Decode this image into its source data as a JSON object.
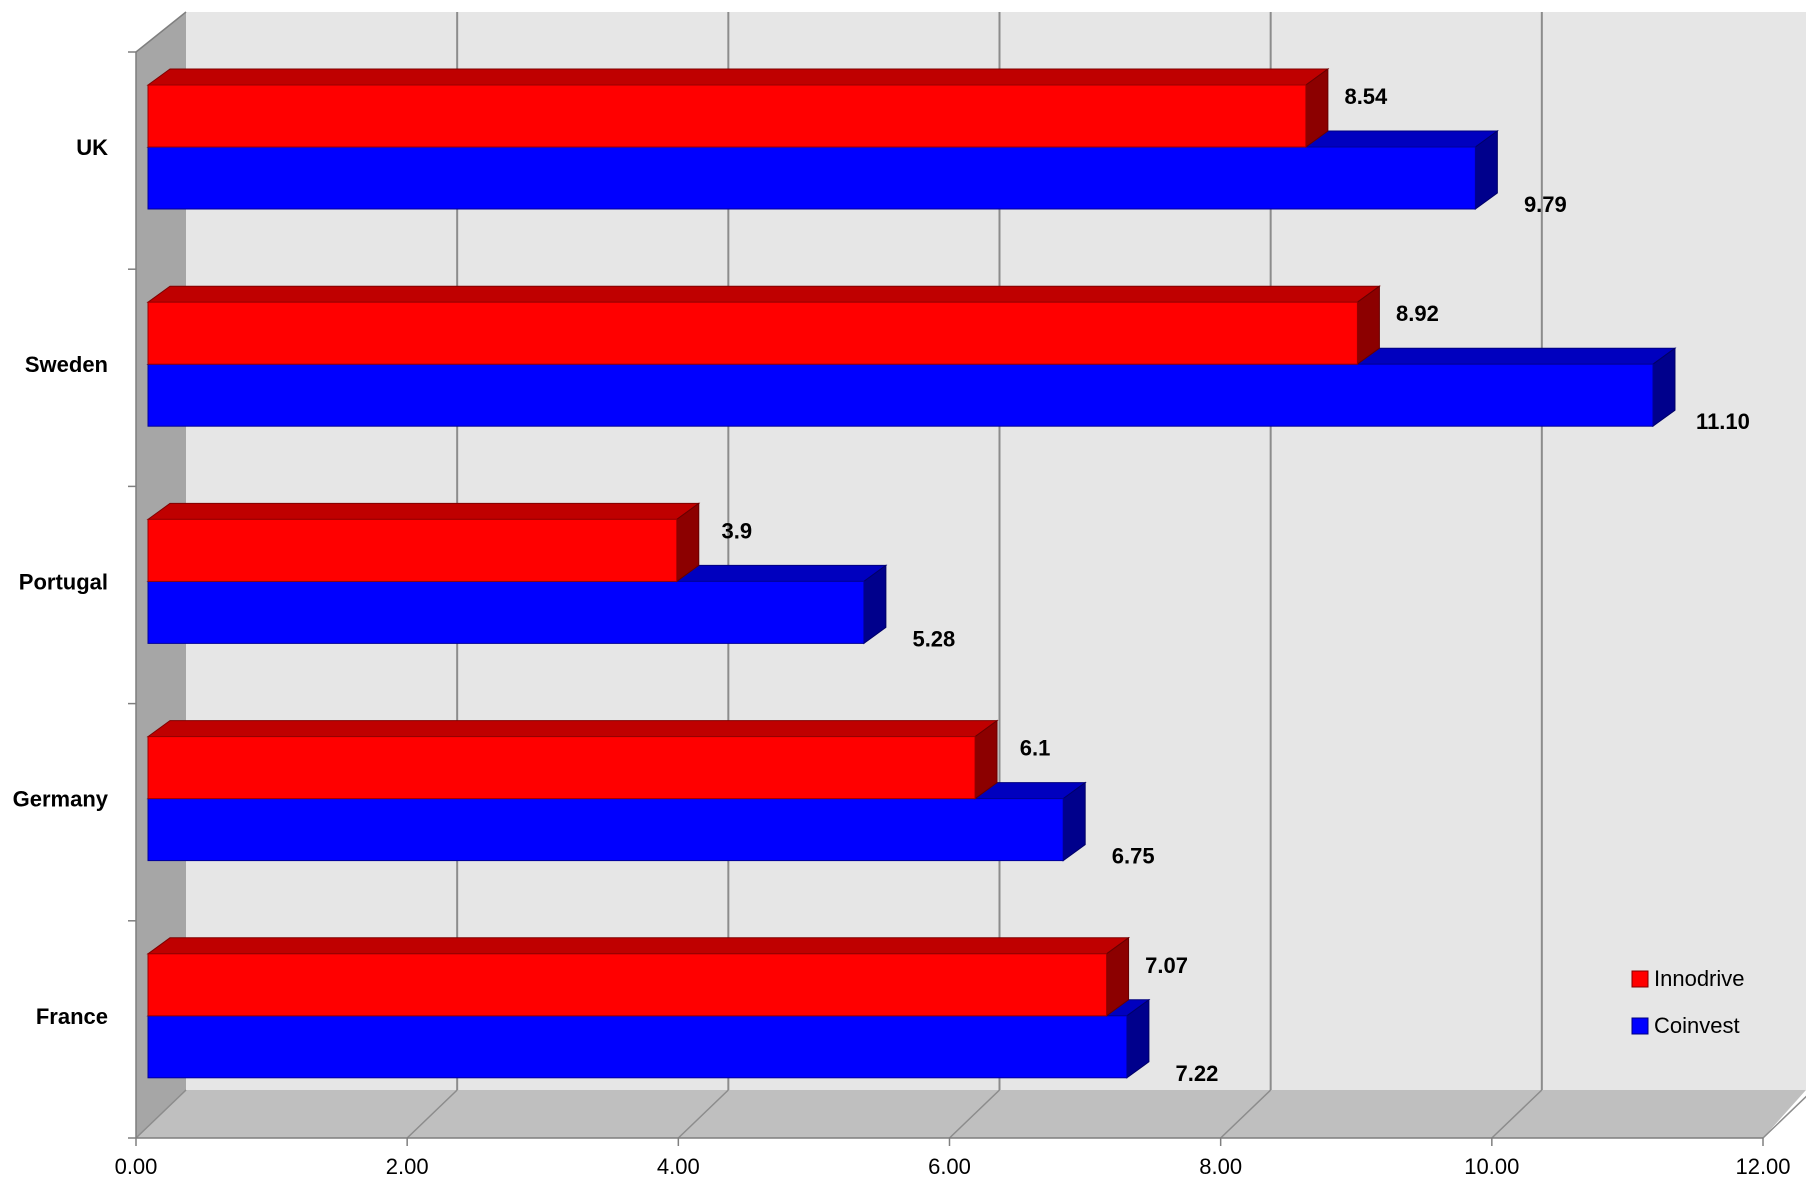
{
  "chart_data": {
    "type": "bar",
    "orientation": "horizontal",
    "style": "3d-clustered",
    "categories": [
      "UK",
      "Sweden",
      "Portugal",
      "Germany",
      "France"
    ],
    "series": [
      {
        "name": "Innodrive",
        "color": "#ff0000",
        "values": [
          8.54,
          8.92,
          3.9,
          6.1,
          7.07
        ],
        "labels": [
          "8.54",
          "8.92",
          "3.9",
          "6.1",
          "7.07"
        ]
      },
      {
        "name": "Coinvest",
        "color": "#0000ff",
        "values": [
          9.79,
          11.1,
          5.28,
          6.75,
          7.22
        ],
        "labels": [
          "9.79",
          "11.10",
          "5.28",
          "6.75",
          "7.22"
        ]
      }
    ],
    "x_ticks": [
      "0.00",
      "2.00",
      "4.00",
      "6.00",
      "8.00",
      "10.00",
      "12.00"
    ],
    "xlim": [
      0,
      12
    ],
    "title": "",
    "xlabel": "",
    "ylabel": "",
    "grid": true,
    "legend_position": "bottom-right",
    "colors": {
      "wall": "#e6e6e6",
      "side_wall": "#a6a6a6",
      "floor": "#bfbfbf",
      "gridline": "#8c8c8c",
      "axis": "#7f7f7f"
    }
  }
}
